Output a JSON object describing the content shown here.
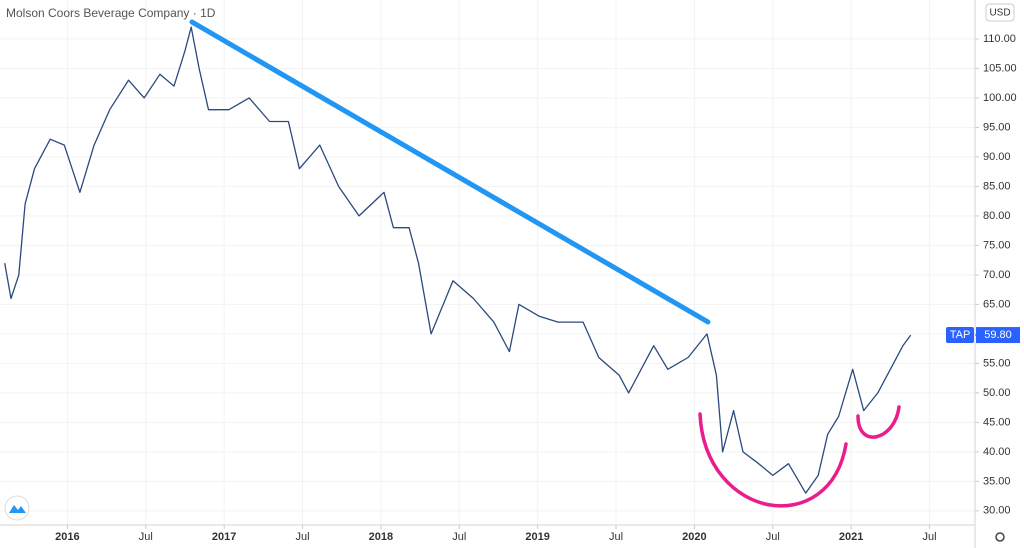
{
  "chart_data": {
    "type": "line",
    "title": "Molson Coors Beverage Company · 1D",
    "currency": "USD",
    "symbol": "TAP",
    "last_value": 59.8,
    "last_value_label": "59.80",
    "color": "#2a4a7f",
    "grid": true,
    "x": [
      2015.6,
      2015.64,
      2015.69,
      2015.73,
      2015.79,
      2015.89,
      2015.98,
      2016.08,
      2016.17,
      2016.27,
      2016.39,
      2016.49,
      2016.59,
      2016.68,
      2016.75,
      2016.79,
      2016.84,
      2016.9,
      2017.03,
      2017.16,
      2017.29,
      2017.41,
      2017.48,
      2017.61,
      2017.73,
      2017.86,
      2018.02,
      2018.08,
      2018.18,
      2018.24,
      2018.32,
      2018.46,
      2018.59,
      2018.72,
      2018.82,
      2018.88,
      2019.01,
      2019.13,
      2019.29,
      2019.39,
      2019.52,
      2019.58,
      2019.74,
      2019.83,
      2019.96,
      2020.08,
      2020.14,
      2020.18,
      2020.25,
      2020.31,
      2020.41,
      2020.5,
      2020.6,
      2020.71,
      2020.79,
      2020.85,
      2020.92,
      2021.01,
      2021.08,
      2021.17,
      2021.27,
      2021.33,
      2021.38
    ],
    "values": [
      72,
      66,
      70,
      82,
      88,
      93,
      92,
      84,
      92,
      98,
      103,
      100,
      104,
      102,
      108,
      112,
      105,
      98,
      98,
      100,
      96,
      96,
      88,
      92,
      85,
      80,
      84,
      78,
      78,
      72,
      60,
      69,
      66,
      62,
      57,
      65,
      63,
      62,
      62,
      56,
      53,
      50,
      58,
      54,
      56,
      60,
      53,
      40,
      47,
      40,
      38,
      36,
      38,
      33,
      36,
      43,
      46,
      54,
      47,
      50,
      55,
      58,
      59.8
    ],
    "xlim": [
      2015.57,
      2021.79
    ],
    "xticks": [
      2016,
      {
        "value": 2016.5,
        "label": "Jul"
      },
      2017,
      {
        "value": 2017.5,
        "label": "Jul"
      },
      2018,
      {
        "value": 2018.5,
        "label": "Jul"
      },
      2019,
      {
        "value": 2019.5,
        "label": "Jul"
      },
      2020,
      {
        "value": 2020.5,
        "label": "Jul"
      },
      2021,
      {
        "value": 2021.5,
        "label": "Jul"
      }
    ],
    "ylim": [
      27.6,
      116.6
    ],
    "yticks": [
      {
        "value": 30,
        "label": "30.00"
      },
      {
        "value": 35,
        "label": "35.00"
      },
      {
        "value": 40,
        "label": "40.00"
      },
      {
        "value": 45,
        "label": "45.00"
      },
      {
        "value": 50,
        "label": "50.00"
      },
      {
        "value": 55,
        "label": "55.00"
      },
      {
        "value": 60,
        "label": "60.00"
      },
      {
        "value": 65,
        "label": "65.00"
      },
      {
        "value": 70,
        "label": "70.00"
      },
      {
        "value": 75,
        "label": "75.00"
      },
      {
        "value": 80,
        "label": "80.00"
      },
      {
        "value": 85,
        "label": "85.00"
      },
      {
        "value": 90,
        "label": "90.00"
      },
      {
        "value": 95,
        "label": "95.00"
      },
      {
        "value": 100,
        "label": "100.00"
      },
      {
        "value": 105,
        "label": "105.00"
      },
      {
        "value": 110,
        "label": "110.00"
      }
    ]
  }
}
